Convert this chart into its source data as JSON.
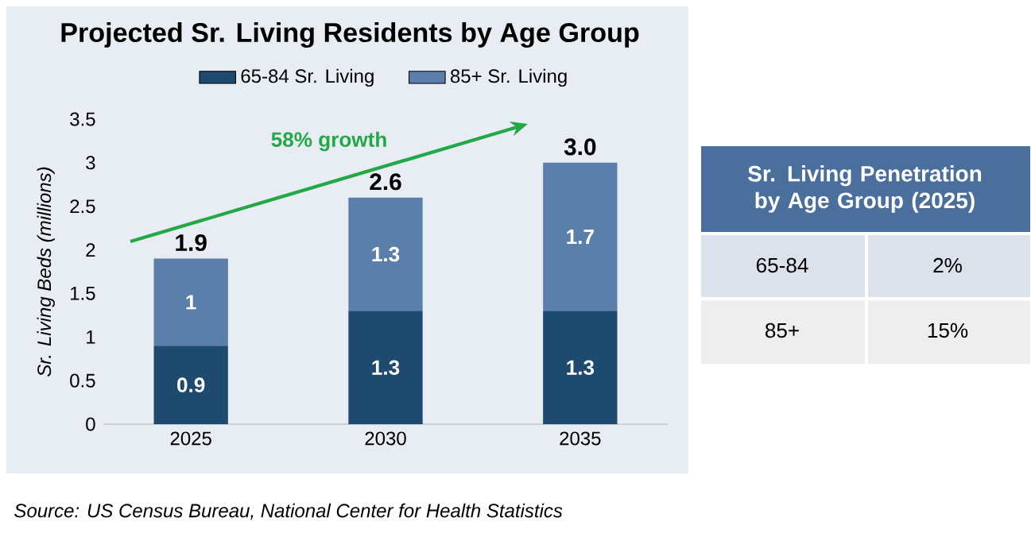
{
  "chart_data": [
    {
      "type": "bar",
      "title": "Projected Sr. Living Residents by Age Group",
      "ylabel": "Sr. Living Beds (millions)",
      "categories": [
        "2025",
        "2030",
        "2035"
      ],
      "stacked": true,
      "series": [
        {
          "name": "65-84 Sr. Living",
          "color": "#1f4a70",
          "values": [
            0.9,
            1.3,
            1.3
          ]
        },
        {
          "name": "85+ Sr. Living",
          "color": "#5a7fab",
          "values": [
            1,
            1.3,
            1.7
          ]
        }
      ],
      "data_labels": true,
      "totals": [
        "1.9",
        "2.6",
        "3.0"
      ],
      "ylim": [
        0,
        3.5
      ],
      "yticks": [
        0,
        0.5,
        1,
        1.5,
        2,
        2.5,
        3,
        3.5
      ],
      "legend": "top",
      "grid": false,
      "annotations": [
        "58% growth",
        "Source: US Census Bureau, National Center for Health Statistics"
      ]
    },
    {
      "type": "other",
      "title": "Sr. Living Penetration by Age Group (2025)",
      "annotations": [
        "65-84",
        "2%",
        "85+",
        "15%"
      ]
    }
  ]
}
